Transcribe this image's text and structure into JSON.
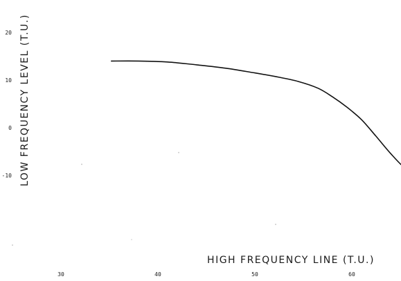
{
  "chart_data": {
    "type": "line",
    "title": "",
    "xlabel": "HIGH FREQUENCY  LINE (T.U.)",
    "ylabel": "LOW FREQUENCY LEVEL (T.U.)",
    "xlim": [
      28,
      68
    ],
    "ylim": [
      -11,
      26
    ],
    "x_ticks": [
      30,
      40,
      50,
      60
    ],
    "x_tick_labels": [
      "30",
      "40",
      "50",
      "60"
    ],
    "y_ticks": [
      20,
      10,
      0,
      -10
    ],
    "y_tick_labels": [
      "20",
      "10",
      "0",
      "-10"
    ],
    "grid": false,
    "legend": "none",
    "series": [
      {
        "x": [
          35.2,
          38,
          41,
          44,
          47,
          50,
          52.5,
          54.5,
          56.5,
          58,
          59.5,
          61,
          62.5,
          64,
          65.5,
          66.8
        ],
        "y": [
          14,
          14,
          13.8,
          13.2,
          12.5,
          11.5,
          10.6,
          9.7,
          8.3,
          6.5,
          4.3,
          1.7,
          -1.8,
          -5.4,
          -8.5,
          -9.7
        ]
      }
    ]
  }
}
